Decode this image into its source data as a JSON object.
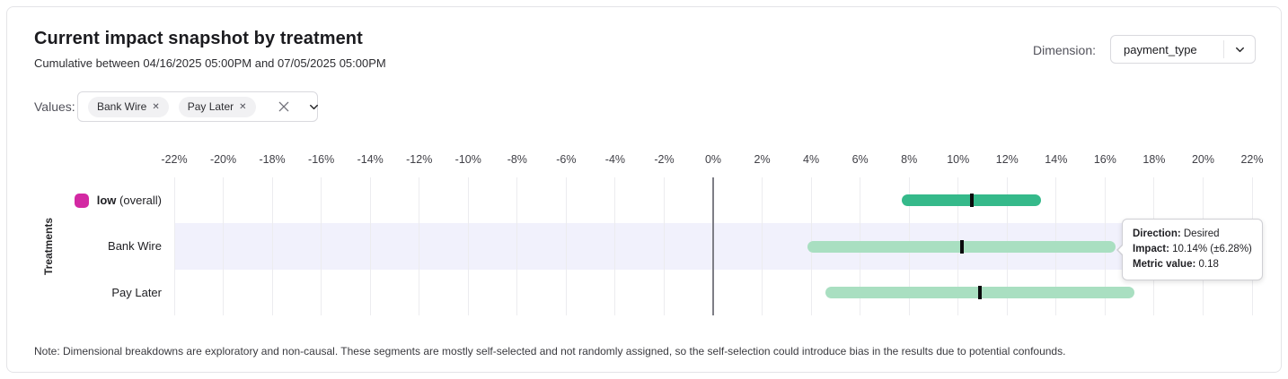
{
  "header": {
    "title": "Current impact snapshot by treatment",
    "subtitle": "Cumulative between 04/16/2025 05:00PM and 07/05/2025 05:00PM",
    "dimension_label": "Dimension:",
    "dimension_value": "payment_type"
  },
  "filters": {
    "values_label": "Values:",
    "chips": [
      {
        "label": "Bank Wire",
        "remove_icon": "✕"
      },
      {
        "label": "Pay Later",
        "remove_icon": "✕"
      }
    ]
  },
  "colors": {
    "overall_bar": "#35b98a",
    "segment_bar": "#a9dfc1",
    "legend_swatch": "#d329a3",
    "highlight_band": "#f1f1fc",
    "center_mark": "#0b0b0d"
  },
  "chart_data": {
    "type": "bar",
    "subtype": "horizontal-interval",
    "ylabel": "Treatments",
    "x_axis": {
      "min": -22,
      "max": 22,
      "tick_step": 2,
      "unit": "%"
    },
    "tick_labels": [
      "-22%",
      "-20%",
      "-18%",
      "-16%",
      "-14%",
      "-12%",
      "-10%",
      "-8%",
      "-6%",
      "-4%",
      "-2%",
      "0%",
      "2%",
      "4%",
      "6%",
      "8%",
      "10%",
      "12%",
      "14%",
      "16%",
      "18%",
      "20%",
      "22%"
    ],
    "grid": true,
    "rows": [
      {
        "label_bold": "low",
        "label_rest": " (overall)",
        "impact_pct": 10.55,
        "margin_pct": 2.85,
        "bar": "overall_bar",
        "swatch": "#d329a3",
        "highlighted": false
      },
      {
        "label": "Bank Wire",
        "impact_pct": 10.14,
        "margin_pct": 6.28,
        "bar": "segment_bar",
        "highlighted": true
      },
      {
        "label": "Pay Later",
        "impact_pct": 10.9,
        "margin_pct": 6.3,
        "bar": "segment_bar",
        "highlighted": false
      }
    ]
  },
  "tooltip": {
    "direction_label": "Direction:",
    "direction_value": " Desired",
    "impact_label": "Impact:",
    "impact_value": " 10.14% (±6.28%)",
    "metric_label": "Metric value:",
    "metric_value": " 0.18"
  },
  "note": "Note: Dimensional breakdowns are exploratory and non-causal. These segments are mostly self-selected and not randomly assigned, so the self-selection could introduce bias in the results due to potential confounds."
}
